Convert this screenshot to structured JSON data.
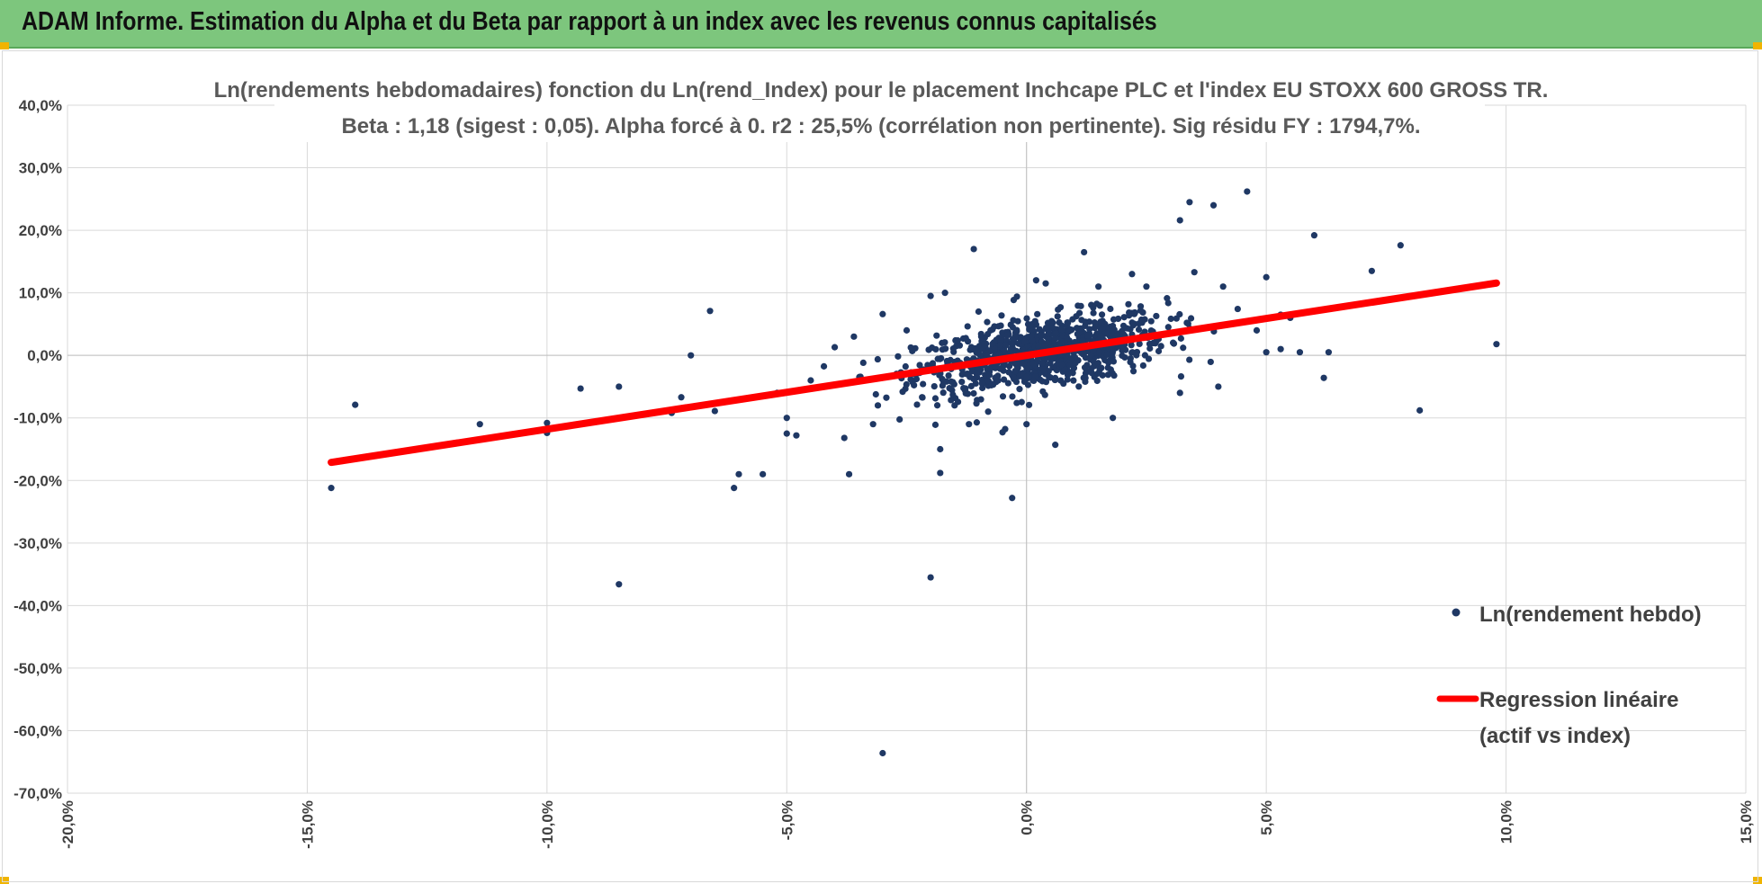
{
  "header": {
    "title": "ADAM Informe. Estimation du Alpha et du Beta par rapport à un index avec les revenus connus capitalisés",
    "background": "#7dc67d",
    "corner_color": "#f0b400"
  },
  "chart_data": {
    "type": "scatter",
    "title": "Ln(rendements hebdomadaires) fonction du Ln(rend_Index) pour le placement Inchcape PLC et l'index EU STOXX 600 GROSS TR.",
    "subtitle": "Beta : 1,18 (sigest : 0,05).  Alpha forcé à 0. r2 : 25,5% (corrélation non pertinente). Sig résidu FY : 1794,7%.",
    "xlabel": "",
    "ylabel": "",
    "xlim": [
      -0.2,
      0.15
    ],
    "ylim": [
      -0.7,
      0.4
    ],
    "x_ticks": [
      "-20,0%",
      "-15,0%",
      "-10,0%",
      "-5,0%",
      "0,0%",
      "5,0%",
      "10,0%",
      "15,0%"
    ],
    "y_ticks": [
      "40,0%",
      "30,0%",
      "20,0%",
      "10,0%",
      "0,0%",
      "-10,0%",
      "-20,0%",
      "-30,0%",
      "-40,0%",
      "-50,0%",
      "-60,0%",
      "-70,0%"
    ],
    "grid": true,
    "legend_position": "right",
    "series": [
      {
        "name": "Ln(rendement hebdo)",
        "color": "#1f3864",
        "points": [
          [
            -0.145,
            -0.212
          ],
          [
            -0.14,
            -0.079
          ],
          [
            -0.114,
            -0.11
          ],
          [
            -0.1,
            -0.108
          ],
          [
            -0.1,
            -0.124
          ],
          [
            -0.093,
            -0.053
          ],
          [
            -0.085,
            -0.366
          ],
          [
            -0.085,
            -0.05
          ],
          [
            -0.074,
            -0.092
          ],
          [
            -0.072,
            -0.067
          ],
          [
            -0.07,
            0.0
          ],
          [
            -0.066,
            0.071
          ],
          [
            -0.065,
            -0.089
          ],
          [
            -0.061,
            -0.212
          ],
          [
            -0.06,
            -0.19
          ],
          [
            -0.055,
            -0.19
          ],
          [
            -0.052,
            -0.06
          ],
          [
            -0.05,
            -0.1
          ],
          [
            -0.05,
            -0.125
          ],
          [
            -0.048,
            -0.128
          ],
          [
            -0.045,
            -0.04
          ],
          [
            -0.04,
            0.013
          ],
          [
            -0.038,
            -0.132
          ],
          [
            -0.037,
            -0.19
          ],
          [
            -0.036,
            0.03
          ],
          [
            -0.032,
            -0.11
          ],
          [
            -0.031,
            -0.08
          ],
          [
            -0.03,
            0.066
          ],
          [
            -0.03,
            -0.636
          ],
          [
            -0.025,
            0.04
          ],
          [
            -0.02,
            -0.355
          ],
          [
            -0.02,
            0.095
          ],
          [
            -0.019,
            -0.111
          ],
          [
            -0.018,
            -0.15
          ],
          [
            -0.018,
            -0.188
          ],
          [
            -0.017,
            0.1
          ],
          [
            -0.015,
            -0.08
          ],
          [
            -0.012,
            -0.11
          ],
          [
            -0.011,
            0.17
          ],
          [
            -0.01,
            0.07
          ],
          [
            -0.008,
            -0.09
          ],
          [
            -0.005,
            -0.123
          ],
          [
            -0.003,
            -0.228
          ],
          [
            -0.002,
            0.094
          ],
          [
            0.0,
            -0.11
          ],
          [
            0.002,
            0.12
          ],
          [
            0.004,
            0.115
          ],
          [
            0.006,
            -0.143
          ],
          [
            0.012,
            0.165
          ],
          [
            0.015,
            0.11
          ],
          [
            0.018,
            -0.1
          ],
          [
            0.022,
            0.13
          ],
          [
            0.025,
            0.11
          ],
          [
            0.032,
            -0.06
          ],
          [
            0.034,
            0.245
          ],
          [
            0.032,
            0.216
          ],
          [
            0.035,
            0.133
          ],
          [
            0.039,
            0.24
          ],
          [
            0.04,
            -0.05
          ],
          [
            0.041,
            0.11
          ],
          [
            0.046,
            0.262
          ],
          [
            0.048,
            0.04
          ],
          [
            0.05,
            0.125
          ],
          [
            0.05,
            0.005
          ],
          [
            0.053,
            0.01
          ],
          [
            0.055,
            0.06
          ],
          [
            0.057,
            0.005
          ],
          [
            0.06,
            0.192
          ],
          [
            0.062,
            -0.036
          ],
          [
            0.063,
            0.005
          ],
          [
            0.072,
            0.135
          ],
          [
            0.078,
            0.176
          ],
          [
            0.082,
            -0.088
          ],
          [
            0.098,
            0.018
          ],
          [
            0.053,
            0.065
          ]
        ]
      },
      {
        "name": "Regression linéaire (actif vs index)",
        "color": "#ff0000",
        "x_range": [
          -0.145,
          0.098
        ],
        "slope": 1.18,
        "intercept": 0.0
      }
    ]
  },
  "legend": {
    "scatter_label": "Ln(rendement hebdo)",
    "line_label_1": "Regression linéaire",
    "line_label_2": "(actif vs index)"
  }
}
